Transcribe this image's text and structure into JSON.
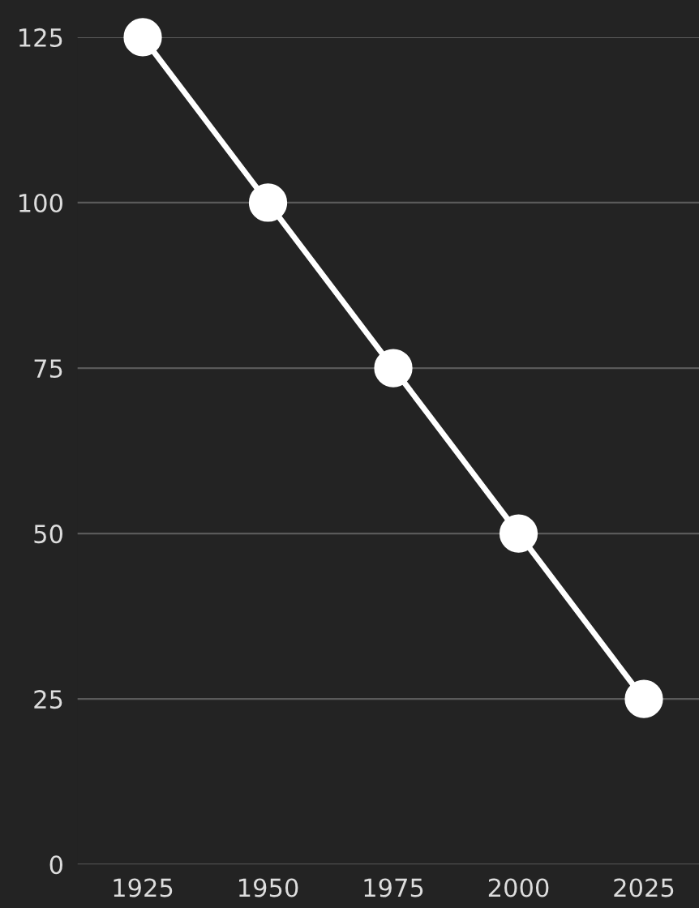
{
  "chart_data": {
    "type": "line",
    "x": [
      1925,
      1950,
      1975,
      2000,
      2025
    ],
    "series": [
      {
        "color": "#ffffff",
        "values": [
          125,
          100,
          75,
          50,
          25
        ]
      }
    ],
    "xlim": [
      1912,
      2036
    ],
    "xticks": [
      1925,
      1950,
      1975,
      2000,
      2025
    ],
    "ylim": [
      0,
      125
    ],
    "yticks": [
      0,
      25,
      50,
      75,
      100,
      125
    ],
    "grid": "y",
    "marker": "circle",
    "line_style": "solid",
    "legend": false
  }
}
